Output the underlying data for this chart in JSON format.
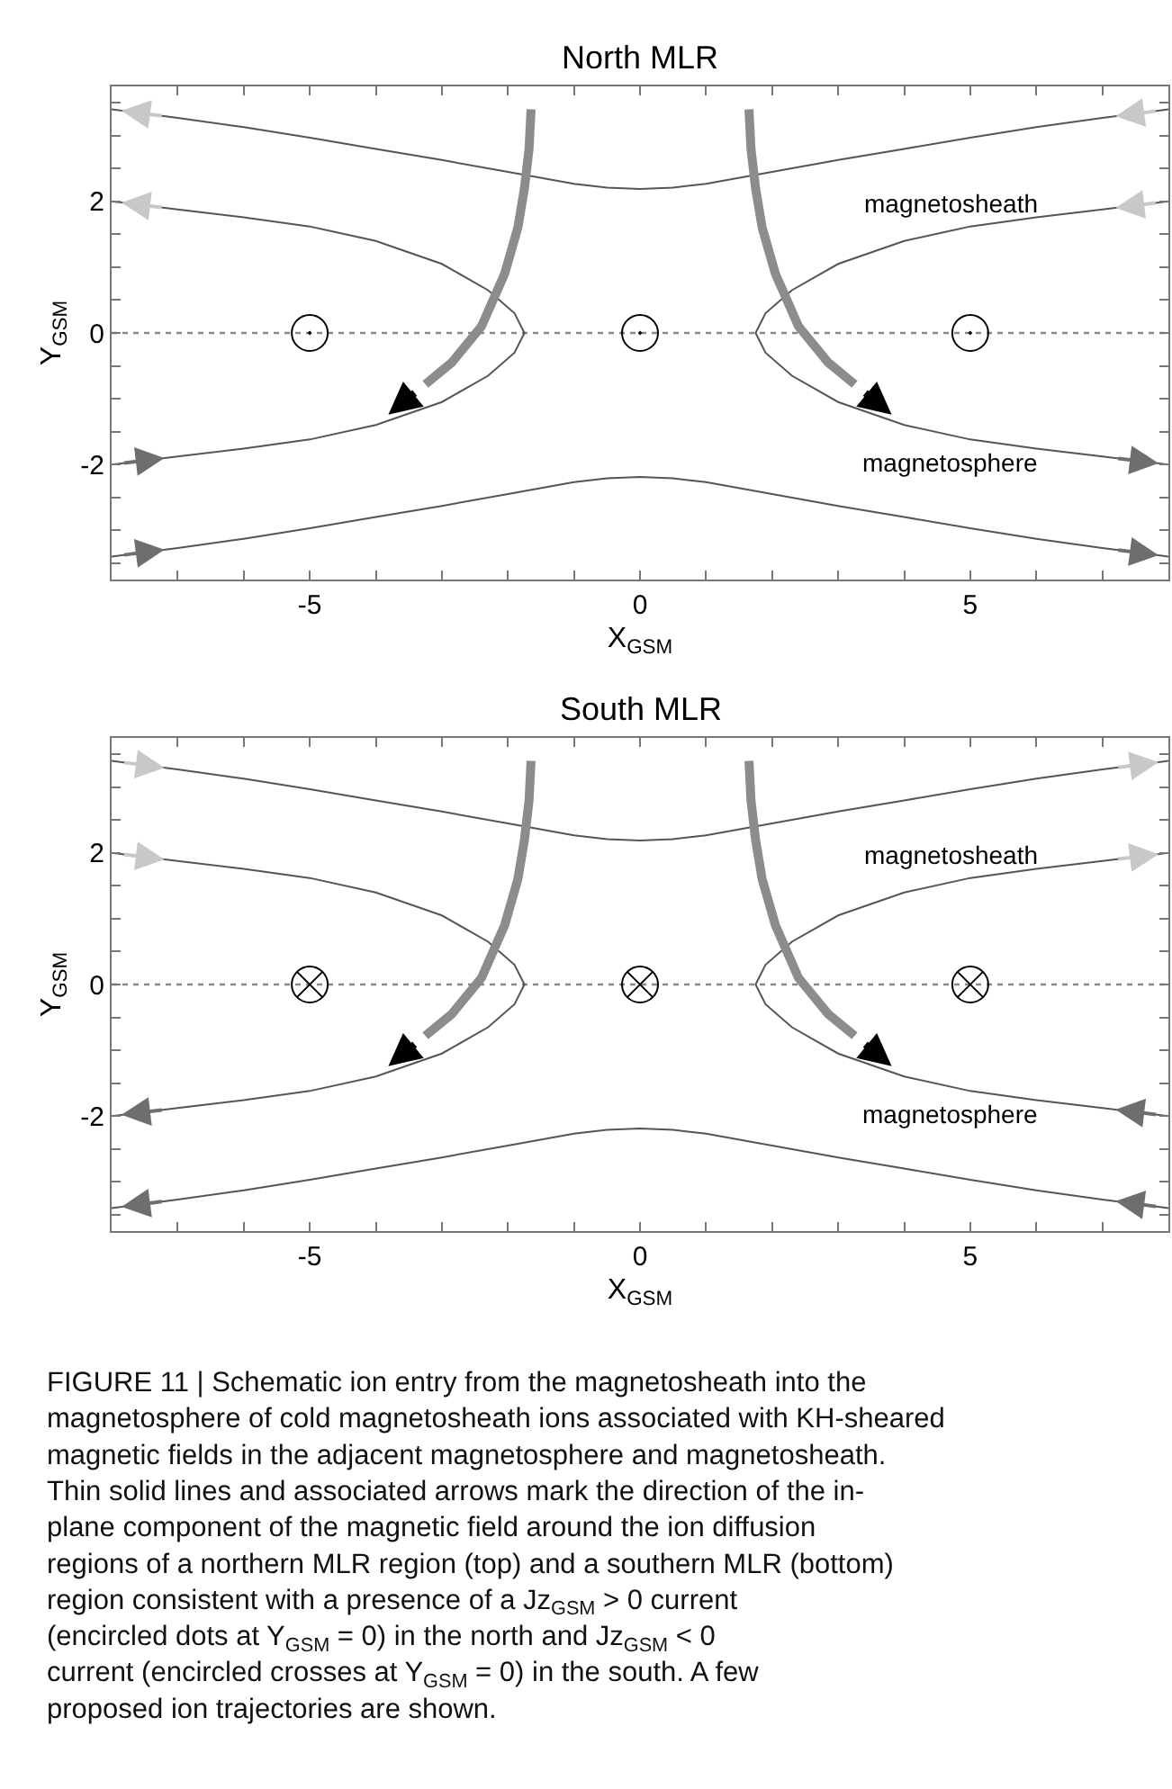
{
  "chart_data": [
    {
      "type": "line",
      "title": "North MLR",
      "xlabel": "X$_{GSM}$",
      "ylabel": "Y$_{GSM}$",
      "xlim": [
        -8,
        8
      ],
      "ylim": [
        -3.75,
        3.75
      ],
      "xticks": [
        {
          "value": -7,
          "label": null
        },
        {
          "value": -6,
          "label": null
        },
        {
          "value": -5,
          "label": "-5"
        },
        {
          "value": -4,
          "label": null
        },
        {
          "value": -3,
          "label": null
        },
        {
          "value": -2,
          "label": null
        },
        {
          "value": -1,
          "label": null
        },
        0,
        {
          "value": 1,
          "label": null
        },
        {
          "value": 2,
          "label": null
        },
        {
          "value": 3,
          "label": null
        },
        {
          "value": 4,
          "label": null
        },
        5,
        {
          "value": 6,
          "label": null
        },
        {
          "value": 7,
          "label": null
        }
      ],
      "yticks": [
        {
          "value": -3.5,
          "label": null
        },
        {
          "value": -3,
          "label": null
        },
        {
          "value": -2.5,
          "label": null
        },
        {
          "value": -2,
          "label": "-2"
        },
        {
          "value": -1.5,
          "label": null
        },
        {
          "value": -1,
          "label": null
        },
        {
          "value": -0.5,
          "label": null
        },
        0,
        {
          "value": 0.5,
          "label": null
        },
        {
          "value": 1,
          "label": null
        },
        {
          "value": 1.5,
          "label": null
        },
        2,
        {
          "value": 2.5,
          "label": null
        },
        {
          "value": 3,
          "label": null
        },
        {
          "value": 3.5,
          "label": null
        }
      ],
      "ref_lines": [
        {
          "axis": "y",
          "value": 0,
          "color": "#888888",
          "line_style": "dotted"
        }
      ],
      "annotations": [
        "magnetosheath",
        "magnetosphere"
      ],
      "series": [
        {
          "color": "#555555",
          "x": [
            -8,
            -7,
            -6,
            -5,
            -4,
            -3,
            -2,
            -1,
            -0.5,
            0,
            0.5,
            1,
            2,
            3,
            4,
            5,
            6,
            7,
            8
          ],
          "values": [
            3.4,
            3.27,
            3.13,
            2.97,
            2.8,
            2.63,
            2.45,
            2.27,
            2.21,
            2.19,
            2.21,
            2.27,
            2.45,
            2.63,
            2.8,
            2.97,
            3.13,
            3.27,
            3.4
          ]
        },
        {
          "color": "#555555",
          "x": [
            -8,
            -7,
            -6,
            -5,
            -4,
            -3,
            -2,
            -1,
            -0.5,
            0,
            0.5,
            1,
            2,
            3,
            4,
            5,
            6,
            7,
            8
          ],
          "values": [
            -3.4,
            -3.27,
            -3.13,
            -2.97,
            -2.8,
            -2.63,
            -2.45,
            -2.27,
            -2.21,
            -2.19,
            -2.21,
            -2.27,
            -2.45,
            -2.63,
            -2.8,
            -2.97,
            -3.13,
            -3.27,
            -3.4
          ]
        },
        {
          "color": "#555555",
          "x": [
            -8,
            -7,
            -6,
            -5,
            -4,
            -3,
            -2.3,
            -1.9,
            -1.75,
            -1.9,
            -2.3,
            -3,
            -4,
            -5,
            -6,
            -7,
            -8
          ],
          "values": [
            2.0,
            1.88,
            1.76,
            1.62,
            1.4,
            1.05,
            0.65,
            0.3,
            0,
            -0.3,
            -0.65,
            -1.05,
            -1.4,
            -1.62,
            -1.76,
            -1.88,
            -2.0
          ]
        },
        {
          "color": "#555555",
          "x": [
            8,
            7,
            6,
            5,
            4,
            3,
            2.3,
            1.9,
            1.75,
            1.9,
            2.3,
            3,
            4,
            5,
            6,
            7,
            8
          ],
          "values": [
            2.0,
            1.88,
            1.76,
            1.62,
            1.4,
            1.05,
            0.65,
            0.3,
            0,
            -0.3,
            -0.65,
            -1.05,
            -1.4,
            -1.62,
            -1.76,
            -1.88,
            -2.0
          ]
        },
        {
          "color": "#8c8c8c",
          "x": [
            -1.65,
            -1.68,
            -1.75,
            -1.85,
            -2.05,
            -2.4,
            -2.85,
            -3.25
          ],
          "values": [
            3.4,
            2.8,
            2.2,
            1.6,
            0.9,
            0.1,
            -0.45,
            -0.78
          ]
        },
        {
          "color": "#8c8c8c",
          "x": [
            1.65,
            1.68,
            1.75,
            1.85,
            2.05,
            2.4,
            2.85,
            3.25
          ],
          "values": [
            3.4,
            2.8,
            2.2,
            1.6,
            0.9,
            0.1,
            -0.45,
            -0.78
          ]
        },
        {
          "type": "scatter",
          "marker": "circle",
          "color": "#000000",
          "x": [
            -5,
            0,
            5
          ],
          "values": [
            0,
            0,
            0
          ]
        }
      ]
    },
    {
      "type": "line",
      "title": "South MLR",
      "xlabel": "X$_{GSM}$",
      "ylabel": "Y$_{GSM}$",
      "xlim": [
        -8,
        8
      ],
      "ylim": [
        -3.75,
        3.75
      ],
      "xticks": [
        {
          "value": -7,
          "label": null
        },
        {
          "value": -6,
          "label": null
        },
        {
          "value": -5,
          "label": "-5"
        },
        {
          "value": -4,
          "label": null
        },
        {
          "value": -3,
          "label": null
        },
        {
          "value": -2,
          "label": null
        },
        {
          "value": -1,
          "label": null
        },
        0,
        {
          "value": 1,
          "label": null
        },
        {
          "value": 2,
          "label": null
        },
        {
          "value": 3,
          "label": null
        },
        {
          "value": 4,
          "label": null
        },
        5,
        {
          "value": 6,
          "label": null
        },
        {
          "value": 7,
          "label": null
        }
      ],
      "yticks": [
        {
          "value": -3.5,
          "label": null
        },
        {
          "value": -3,
          "label": null
        },
        {
          "value": -2.5,
          "label": null
        },
        {
          "value": -2,
          "label": "-2"
        },
        {
          "value": -1.5,
          "label": null
        },
        {
          "value": -1,
          "label": null
        },
        {
          "value": -0.5,
          "label": null
        },
        0,
        {
          "value": 0.5,
          "label": null
        },
        {
          "value": 1,
          "label": null
        },
        {
          "value": 1.5,
          "label": null
        },
        2,
        {
          "value": 2.5,
          "label": null
        },
        {
          "value": 3,
          "label": null
        },
        {
          "value": 3.5,
          "label": null
        }
      ],
      "ref_lines": [
        {
          "axis": "y",
          "value": 0,
          "color": "#888888",
          "line_style": "dotted"
        }
      ],
      "annotations": [
        "magnetosheath",
        "magnetosphere",
        "FIGURE 11 | Schematic ion entry from the magnetosheath into the magnetosphere of cold magnetosheath ions associated with KH-sheared magnetic fields in the adjacent magnetosphere and magnetosheath. Thin solid lines and associated arrows mark the direction of the in-plane component of the magnetic field around the ion diffusion regions of a northern MLR region (top) and a southern MLR (bottom) region consistent with a presence of a Jz$_{GSM}$ > 0 current (encircled dots at Y$_{GSM}$ = 0) in the north and Jz$_{GSM}$ < 0 current (encircled crosses at Y$_{GSM}$ = 0) in the south. A few proposed ion trajectories are shown."
      ],
      "series": [
        {
          "color": "#555555",
          "x": [
            -8,
            -7,
            -6,
            -5,
            -4,
            -3,
            -2,
            -1,
            -0.5,
            0,
            0.5,
            1,
            2,
            3,
            4,
            5,
            6,
            7,
            8
          ],
          "values": [
            3.4,
            3.27,
            3.13,
            2.97,
            2.8,
            2.63,
            2.45,
            2.27,
            2.21,
            2.19,
            2.21,
            2.27,
            2.45,
            2.63,
            2.8,
            2.97,
            3.13,
            3.27,
            3.4
          ]
        },
        {
          "color": "#555555",
          "x": [
            -8,
            -7,
            -6,
            -5,
            -4,
            -3,
            -2,
            -1,
            -0.5,
            0,
            0.5,
            1,
            2,
            3,
            4,
            5,
            6,
            7,
            8
          ],
          "values": [
            -3.4,
            -3.27,
            -3.13,
            -2.97,
            -2.8,
            -2.63,
            -2.45,
            -2.27,
            -2.21,
            -2.19,
            -2.21,
            -2.27,
            -2.45,
            -2.63,
            -2.8,
            -2.97,
            -3.13,
            -3.27,
            -3.4
          ]
        },
        {
          "color": "#555555",
          "x": [
            -8,
            -7,
            -6,
            -5,
            -4,
            -3,
            -2.3,
            -1.9,
            -1.75,
            -1.9,
            -2.3,
            -3,
            -4,
            -5,
            -6,
            -7,
            -8
          ],
          "values": [
            2.0,
            1.88,
            1.76,
            1.62,
            1.4,
            1.05,
            0.65,
            0.3,
            0,
            -0.3,
            -0.65,
            -1.05,
            -1.4,
            -1.62,
            -1.76,
            -1.88,
            -2.0
          ]
        },
        {
          "color": "#555555",
          "x": [
            8,
            7,
            6,
            5,
            4,
            3,
            2.3,
            1.9,
            1.75,
            1.9,
            2.3,
            3,
            4,
            5,
            6,
            7,
            8
          ],
          "values": [
            2.0,
            1.88,
            1.76,
            1.62,
            1.4,
            1.05,
            0.65,
            0.3,
            0,
            -0.3,
            -0.65,
            -1.05,
            -1.4,
            -1.62,
            -1.76,
            -1.88,
            -2.0
          ]
        },
        {
          "color": "#8c8c8c",
          "x": [
            -1.65,
            -1.68,
            -1.75,
            -1.85,
            -2.05,
            -2.4,
            -2.85,
            -3.25
          ],
          "values": [
            3.4,
            2.8,
            2.2,
            1.6,
            0.9,
            0.1,
            -0.45,
            -0.78
          ]
        },
        {
          "color": "#8c8c8c",
          "x": [
            1.65,
            1.68,
            1.75,
            1.85,
            2.05,
            2.4,
            2.85,
            3.25
          ],
          "values": [
            3.4,
            2.8,
            2.2,
            1.6,
            0.9,
            0.1,
            -0.45,
            -0.78
          ]
        },
        {
          "type": "scatter",
          "marker": "cross",
          "color": "#000000",
          "x": [
            -5,
            0,
            5
          ],
          "values": [
            0,
            0,
            0
          ]
        }
      ]
    }
  ]
}
